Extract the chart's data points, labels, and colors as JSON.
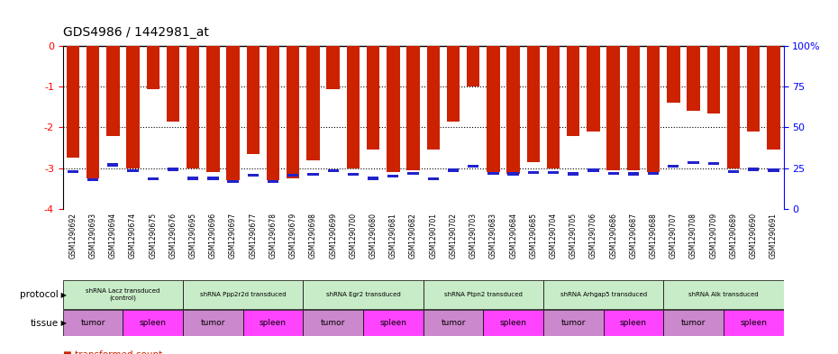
{
  "title": "GDS4986 / 1442981_at",
  "samples": [
    "GSM1290692",
    "GSM1290693",
    "GSM1290694",
    "GSM1290674",
    "GSM1290675",
    "GSM1290676",
    "GSM1290695",
    "GSM1290696",
    "GSM1290697",
    "GSM1290677",
    "GSM1290678",
    "GSM1290679",
    "GSM1290698",
    "GSM1290699",
    "GSM1290700",
    "GSM1290680",
    "GSM1290681",
    "GSM1290682",
    "GSM1290701",
    "GSM1290702",
    "GSM1290703",
    "GSM1290683",
    "GSM1290684",
    "GSM1290685",
    "GSM1290704",
    "GSM1290705",
    "GSM1290706",
    "GSM1290686",
    "GSM1290687",
    "GSM1290688",
    "GSM1290707",
    "GSM1290708",
    "GSM1290709",
    "GSM1290689",
    "GSM1290690",
    "GSM1290691"
  ],
  "red_values": [
    -2.75,
    -3.25,
    -2.2,
    -3.0,
    -1.05,
    -1.85,
    -3.0,
    -3.1,
    -3.3,
    -2.65,
    -3.3,
    -3.25,
    -2.8,
    -1.05,
    -3.0,
    -2.55,
    -3.1,
    -3.05,
    -2.55,
    -1.85,
    -1.0,
    -3.1,
    -3.15,
    -2.85,
    -3.0,
    -2.2,
    -2.1,
    -3.05,
    -3.05,
    -3.1,
    -1.4,
    -1.6,
    -1.65,
    -3.0,
    -2.1,
    -2.55
  ],
  "blue_values": [
    -3.08,
    -3.28,
    -2.92,
    -3.06,
    -3.27,
    -3.03,
    -3.25,
    -3.25,
    -3.32,
    -3.17,
    -3.32,
    -3.18,
    -3.16,
    -3.07,
    -3.15,
    -3.25,
    -3.2,
    -3.12,
    -3.27,
    -3.05,
    -2.96,
    -3.12,
    -3.14,
    -3.1,
    -3.11,
    -3.14,
    -3.05,
    -3.12,
    -3.14,
    -3.12,
    -2.95,
    -2.87,
    -2.88,
    -3.09,
    -3.03,
    -3.05
  ],
  "protocols": [
    {
      "label": "shRNA Lacz transduced\n(control)",
      "start": 0,
      "end": 6,
      "color": "#c8ecc8"
    },
    {
      "label": "shRNA Ppp2r2d transduced",
      "start": 6,
      "end": 12,
      "color": "#c8ecc8"
    },
    {
      "label": "shRNA Egr2 transduced",
      "start": 12,
      "end": 18,
      "color": "#c8ecc8"
    },
    {
      "label": "shRNA Ptpn2 transduced",
      "start": 18,
      "end": 24,
      "color": "#c8ecc8"
    },
    {
      "label": "shRNA Arhgap5 transduced",
      "start": 24,
      "end": 30,
      "color": "#c8ecc8"
    },
    {
      "label": "shRNA Alk transduced",
      "start": 30,
      "end": 36,
      "color": "#c8ecc8"
    }
  ],
  "tissues": [
    {
      "label": "tumor",
      "start": 0,
      "end": 3,
      "color": "#cc88cc"
    },
    {
      "label": "spleen",
      "start": 3,
      "end": 6,
      "color": "#ff44ff"
    },
    {
      "label": "tumor",
      "start": 6,
      "end": 9,
      "color": "#cc88cc"
    },
    {
      "label": "spleen",
      "start": 9,
      "end": 12,
      "color": "#ff44ff"
    },
    {
      "label": "tumor",
      "start": 12,
      "end": 15,
      "color": "#cc88cc"
    },
    {
      "label": "spleen",
      "start": 15,
      "end": 18,
      "color": "#ff44ff"
    },
    {
      "label": "tumor",
      "start": 18,
      "end": 21,
      "color": "#cc88cc"
    },
    {
      "label": "spleen",
      "start": 21,
      "end": 24,
      "color": "#ff44ff"
    },
    {
      "label": "tumor",
      "start": 24,
      "end": 27,
      "color": "#cc88cc"
    },
    {
      "label": "spleen",
      "start": 27,
      "end": 30,
      "color": "#ff44ff"
    },
    {
      "label": "tumor",
      "start": 30,
      "end": 33,
      "color": "#cc88cc"
    },
    {
      "label": "spleen",
      "start": 33,
      "end": 36,
      "color": "#ff44ff"
    }
  ],
  "bar_color": "#cc2200",
  "blue_color": "#2222cc",
  "tick_bg_color": "#cccccc"
}
